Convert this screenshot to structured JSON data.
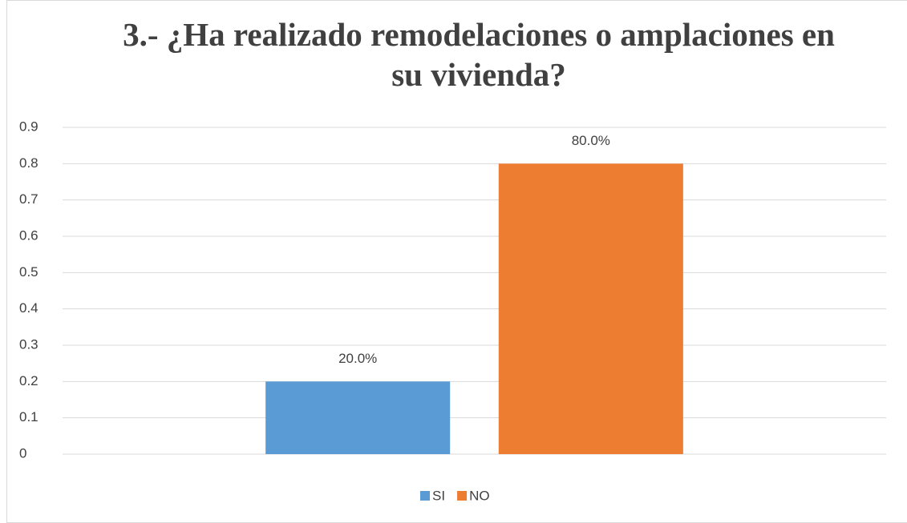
{
  "chart_data": {
    "type": "bar",
    "title": "3.- ¿Ha realizado remodelaciones o amplaciones en su vivienda?",
    "categories": [
      null
    ],
    "series": [
      {
        "name": "SI",
        "color": "#5b9bd5",
        "values": [
          0.2
        ],
        "value_labels": [
          "20.0%"
        ]
      },
      {
        "name": "NO",
        "color": "#ed7d31",
        "values": [
          0.8
        ],
        "value_labels": [
          "80.0%"
        ]
      }
    ],
    "ylim": [
      0,
      0.9
    ],
    "yticks": [
      0,
      0.1,
      0.2,
      0.3,
      0.4,
      0.5,
      0.6,
      0.7,
      0.8,
      0.9
    ],
    "grid": true,
    "legend": "bottom"
  }
}
